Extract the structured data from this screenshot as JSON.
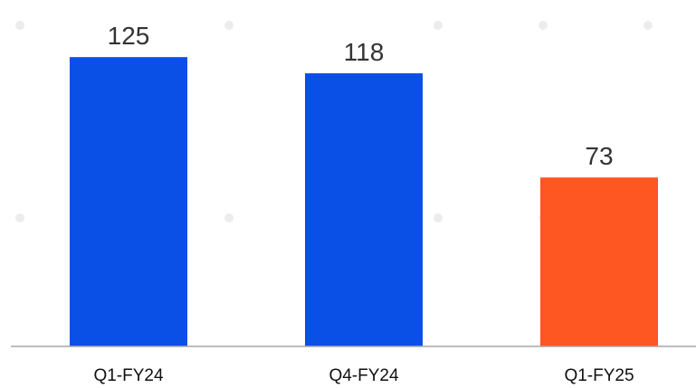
{
  "chart_data": {
    "type": "bar",
    "categories": [
      "Q1-FY24",
      "Q4-FY24",
      "Q1-FY25"
    ],
    "values": [
      125,
      118,
      73
    ],
    "bar_colors": [
      "#0a4fe6",
      "#0a4fe6",
      "#ff5722"
    ],
    "data_labels": [
      "125",
      "118",
      "73"
    ],
    "ylim": [
      0,
      136
    ],
    "grid": false,
    "legend": "none",
    "title": "",
    "xlabel": "",
    "ylabel": ""
  },
  "colors": {
    "axis": "#a6a6a6",
    "dots": "#ececec"
  }
}
